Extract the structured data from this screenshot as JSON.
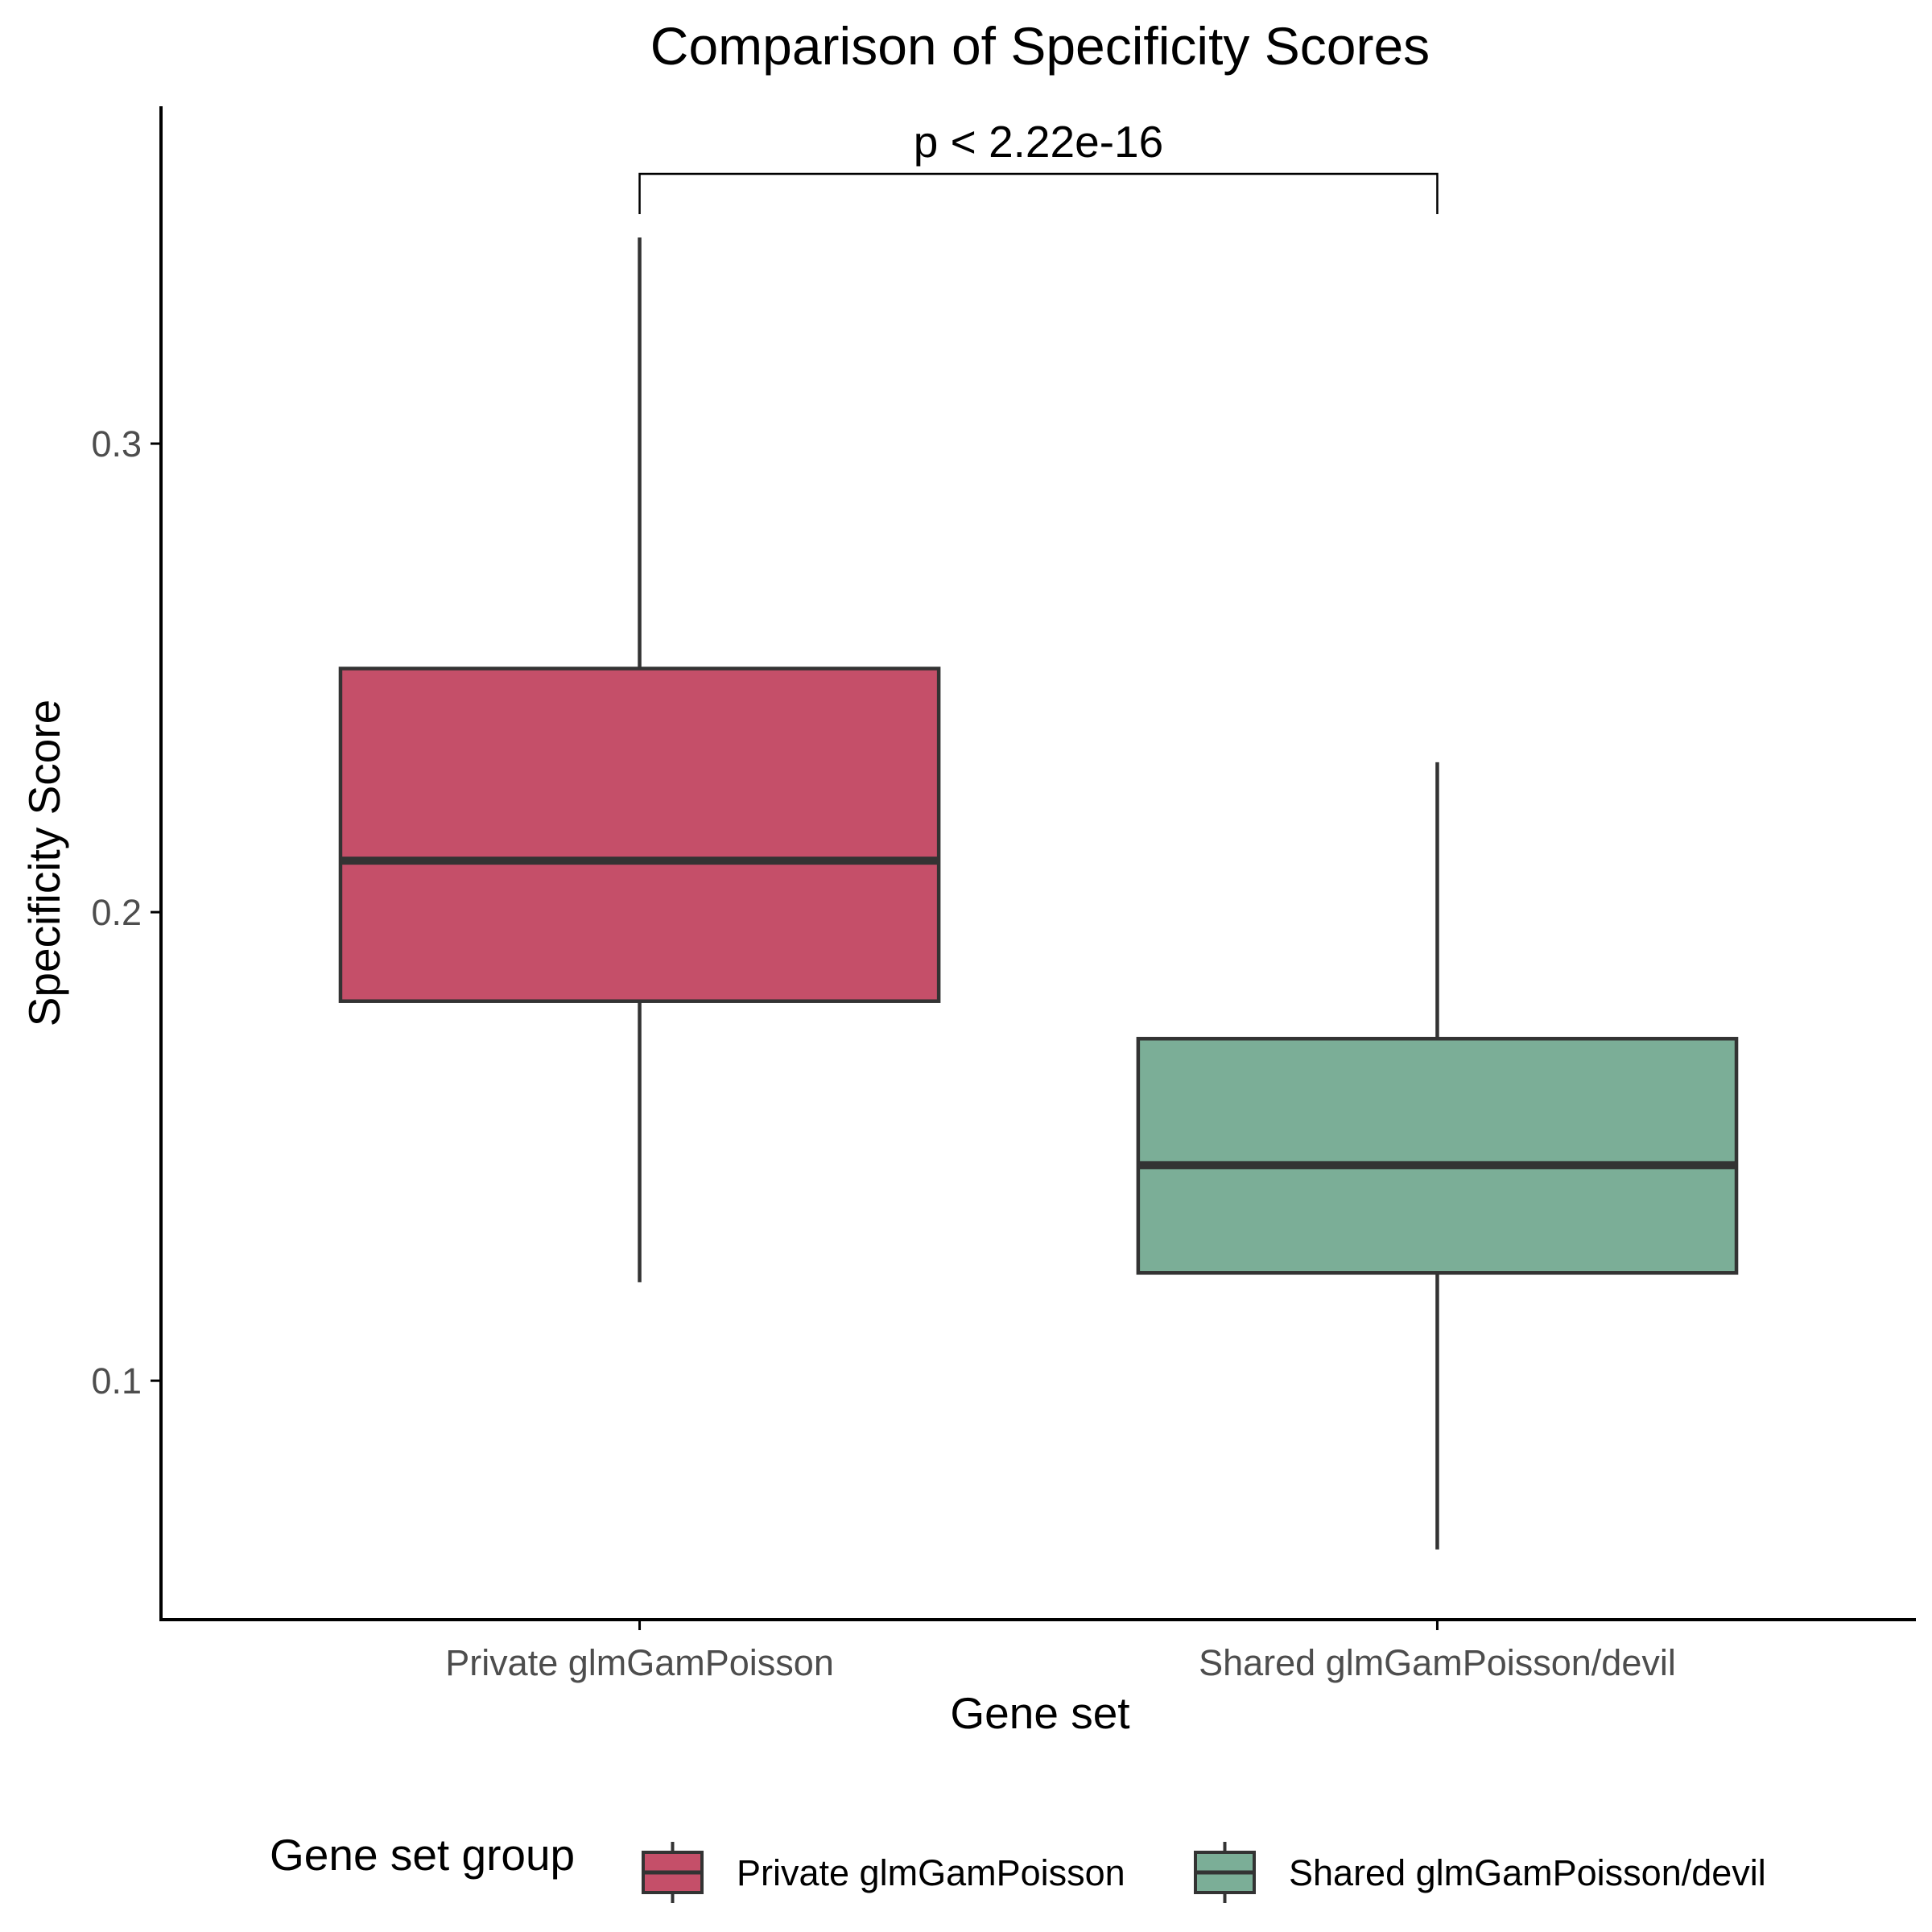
{
  "chart_data": {
    "type": "box",
    "title": "Comparison of Specificity Scores",
    "xlabel": "Gene set",
    "ylabel": "Specificity Score",
    "ylim": [
      0.049,
      0.372
    ],
    "yticks": [
      0.1,
      0.2,
      0.3
    ],
    "ytick_labels": [
      "0.1",
      "0.2",
      "0.3"
    ],
    "categories": [
      "Private glmGamPoisson",
      "Shared glmGamPoisson/devil"
    ],
    "series": [
      {
        "name": "Private glmGamPoisson",
        "color": "#c54f69",
        "whisker_low": 0.121,
        "q1": 0.181,
        "median": 0.211,
        "q3": 0.252,
        "whisker_high": 0.344
      },
      {
        "name": "Shared glmGamPoisson/devil",
        "color": "#7bae97",
        "whisker_low": 0.064,
        "q1": 0.123,
        "median": 0.146,
        "q3": 0.173,
        "whisker_high": 0.232
      }
    ],
    "significance": {
      "label": "p < 2.22e-16",
      "between": [
        "Private glmGamPoisson",
        "Shared glmGamPoisson/devil"
      ]
    },
    "grid": false,
    "legend": {
      "title": "Gene set group",
      "position": "bottom",
      "entries": [
        "Private glmGamPoisson",
        "Shared glmGamPoisson/devil"
      ]
    },
    "style": {
      "box_stroke": "#333333",
      "axis_color": "#000000",
      "tick_label_color": "#4d4d4d"
    }
  }
}
